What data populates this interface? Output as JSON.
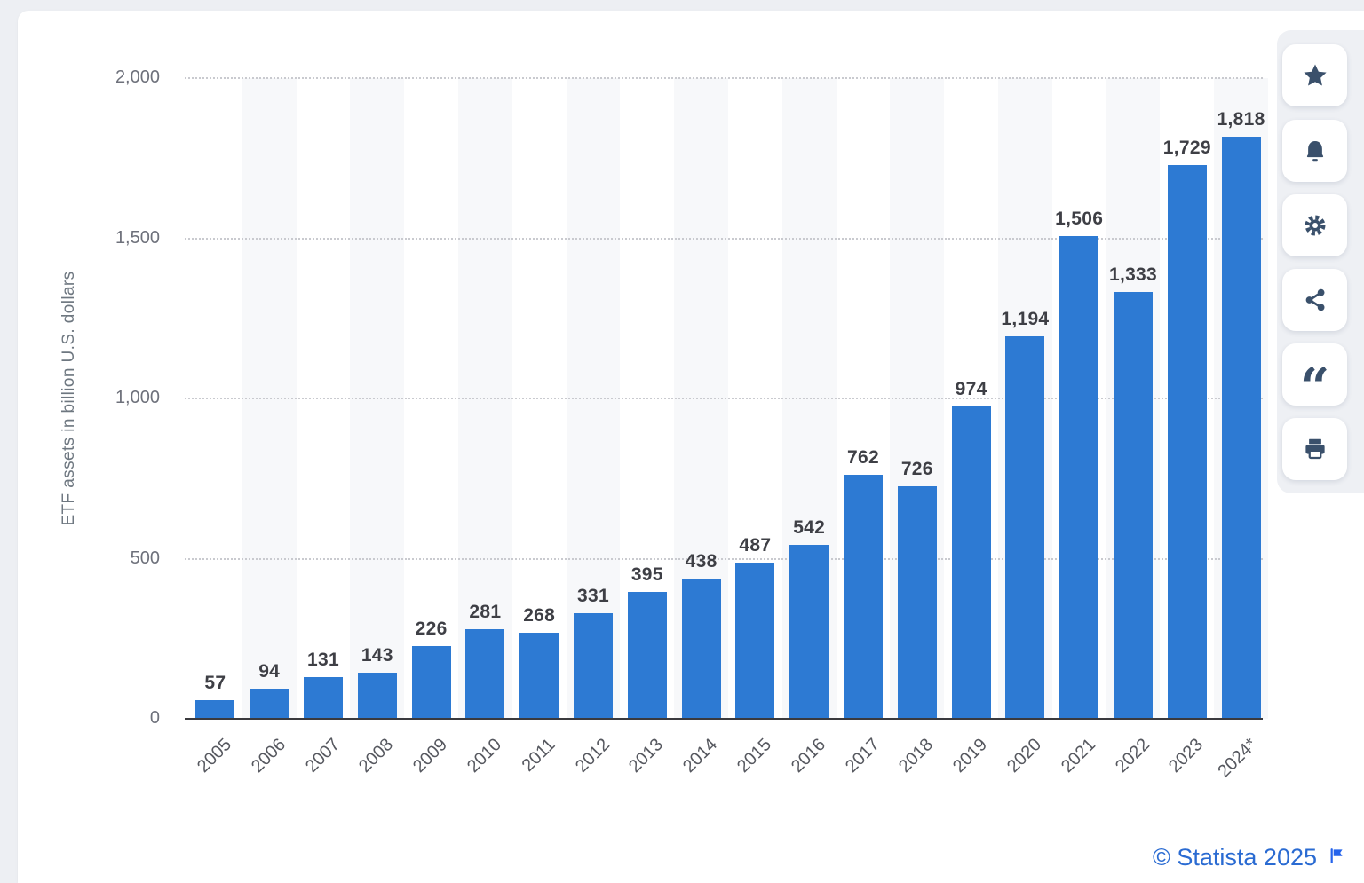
{
  "chart_data": {
    "type": "bar",
    "title": "",
    "categories": [
      "2005",
      "2006",
      "2007",
      "2008",
      "2009",
      "2010",
      "2011",
      "2012",
      "2013",
      "2014",
      "2015",
      "2016",
      "2017",
      "2018",
      "2019",
      "2020",
      "2021",
      "2022",
      "2023",
      "2024*"
    ],
    "values": [
      57,
      94,
      131,
      143,
      226,
      281,
      268,
      331,
      395,
      438,
      487,
      542,
      762,
      726,
      974,
      1194,
      1506,
      1333,
      1729,
      1818
    ],
    "value_labels": [
      "57",
      "94",
      "131",
      "143",
      "226",
      "281",
      "268",
      "331",
      "395",
      "438",
      "487",
      "542",
      "762",
      "726",
      "974",
      "1,194",
      "1,506",
      "1,333",
      "1,729",
      "1,818"
    ],
    "xlabel": "",
    "ylabel": "ETF assets in billion U.S. dollars",
    "ylim": [
      0,
      2000
    ],
    "y_ticks": [
      0,
      500,
      1000,
      1500,
      2000
    ],
    "y_tick_labels": [
      "0",
      "500",
      "1,000",
      "1,500",
      "2,000"
    ],
    "grid": "horizontal-dotted",
    "legend": "none",
    "bar_color": "#2d7ad3"
  },
  "toolbar": {
    "buttons": [
      {
        "name": "favorite",
        "icon": "star-icon"
      },
      {
        "name": "notifications",
        "icon": "bell-icon"
      },
      {
        "name": "settings",
        "icon": "gear-icon"
      },
      {
        "name": "share",
        "icon": "share-icon"
      },
      {
        "name": "cite",
        "icon": "quote-icon"
      },
      {
        "name": "print",
        "icon": "printer-icon"
      }
    ]
  },
  "footer": {
    "copyright": "© Statista 2025"
  },
  "colors": {
    "bar": "#2d7ad3",
    "link_blue": "#2a6bd2",
    "flag_blue": "#2563eb",
    "icon": "#3a506b",
    "page_background": "#edeff3",
    "column_band": "#f7f8fa"
  }
}
